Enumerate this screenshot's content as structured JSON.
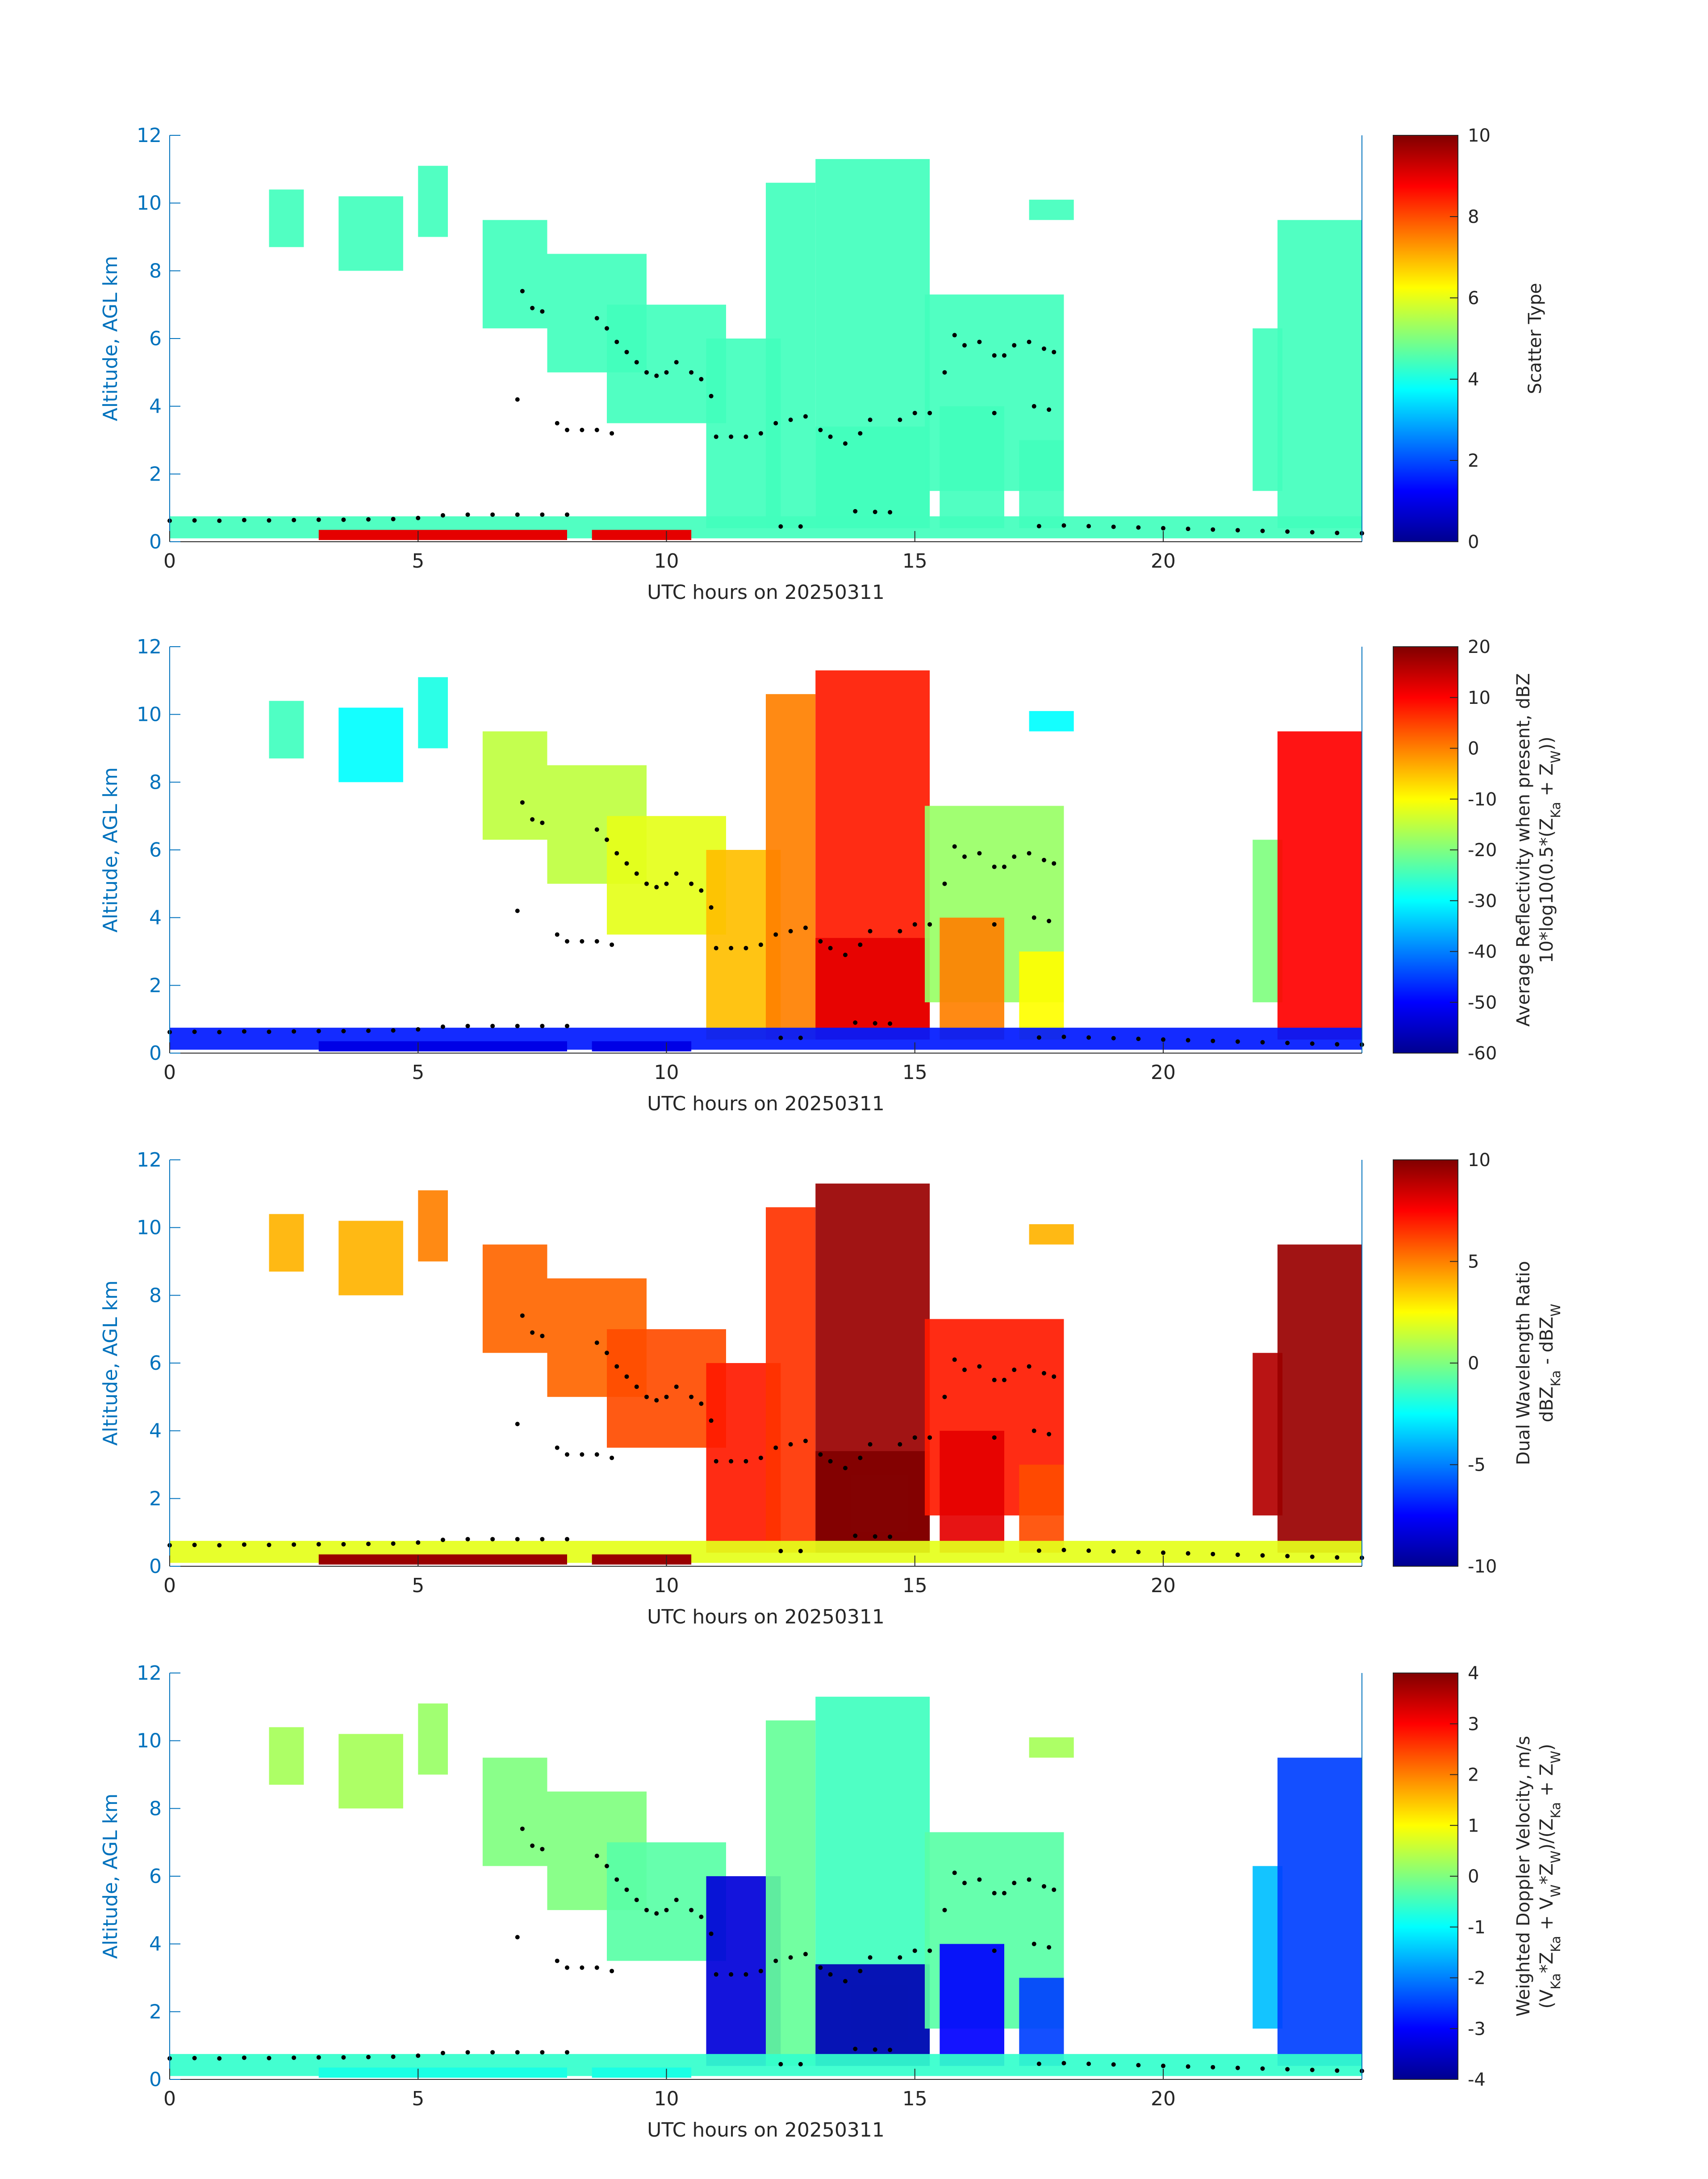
{
  "chart_data": [
    {
      "type": "heatmap",
      "xlabel": "UTC hours on 20250311",
      "ylabel": "Altitude, AGL km",
      "xlim": [
        0,
        24
      ],
      "ylim": [
        0,
        12
      ],
      "xticks": [
        0,
        5,
        10,
        15,
        20
      ],
      "yticks": [
        0,
        2,
        4,
        6,
        8,
        10,
        12
      ],
      "colorbar": {
        "label_lines": [
          "Scatter Type"
        ],
        "range": [
          0,
          10
        ],
        "ticks": [
          0,
          2,
          4,
          6,
          8,
          10
        ],
        "colormap": "jet"
      },
      "dominant_value": 4.4,
      "surface_value": 9.0
    },
    {
      "type": "heatmap",
      "xlabel": "UTC hours on 20250311",
      "ylabel": "Altitude, AGL km",
      "xlim": [
        0,
        24
      ],
      "ylim": [
        0,
        12
      ],
      "xticks": [
        0,
        5,
        10,
        15,
        20
      ],
      "yticks": [
        0,
        2,
        4,
        6,
        8,
        10,
        12
      ],
      "colorbar": {
        "label_lines": [
          "Average Reflectivity when present, dBZ",
          "10*log10(0.5*(Z_Ka + Z_W))"
        ],
        "range": [
          -60,
          20
        ],
        "ticks": [
          -60,
          -50,
          -40,
          -30,
          -20,
          -10,
          0,
          10,
          20
        ],
        "colormap": "jet"
      }
    },
    {
      "type": "heatmap",
      "xlabel": "UTC hours on 20250311",
      "ylabel": "Altitude, AGL km",
      "xlim": [
        0,
        24
      ],
      "ylim": [
        0,
        12
      ],
      "xticks": [
        0,
        5,
        10,
        15,
        20
      ],
      "yticks": [
        0,
        2,
        4,
        6,
        8,
        10,
        12
      ],
      "colorbar": {
        "label_lines": [
          "Dual Wavelength Ratio",
          "dBZ_Ka - dBZ_W"
        ],
        "range": [
          -10,
          10
        ],
        "ticks": [
          -10,
          -5,
          0,
          5,
          10
        ],
        "colormap": "jet"
      }
    },
    {
      "type": "heatmap",
      "xlabel": "UTC hours on 20250311",
      "ylabel": "Altitude, AGL km",
      "xlim": [
        0,
        24
      ],
      "ylim": [
        0,
        12
      ],
      "xticks": [
        0,
        5,
        10,
        15,
        20
      ],
      "yticks": [
        0,
        2,
        4,
        6,
        8,
        10,
        12
      ],
      "colorbar": {
        "label_lines": [
          "Weighted Doppler Velocity, m/s",
          "(V_Ka*Z_Ka + V_W*Z_W)/(Z_Ka + Z_W)"
        ],
        "range": [
          -4,
          4
        ],
        "ticks": [
          -4,
          -3,
          -2,
          -1,
          0,
          1,
          2,
          3,
          4
        ],
        "colormap": "jet"
      }
    }
  ],
  "cloud_echoes": [
    {
      "t0": 2.0,
      "t1": 2.7,
      "base": 8.7,
      "top": 10.4,
      "v": [
        4.4,
        -25,
        4,
        0.3
      ]
    },
    {
      "t0": 3.4,
      "t1": 4.7,
      "base": 8.0,
      "top": 10.2,
      "v": [
        4.4,
        -30,
        4,
        0.3
      ]
    },
    {
      "t0": 5.0,
      "t1": 5.6,
      "base": 9.0,
      "top": 11.1,
      "v": [
        4.4,
        -28,
        5,
        0.2
      ]
    },
    {
      "t0": 6.3,
      "t1": 7.6,
      "base": 6.3,
      "top": 9.5,
      "v": [
        4.4,
        -15,
        5.5,
        0.0
      ]
    },
    {
      "t0": 7.6,
      "t1": 9.6,
      "base": 5.0,
      "top": 8.5,
      "v": [
        4.4,
        -15,
        5.5,
        0.0
      ]
    },
    {
      "t0": 8.8,
      "t1": 11.2,
      "base": 3.5,
      "top": 7.0,
      "v": [
        4.4,
        -12,
        6,
        -0.3
      ]
    },
    {
      "t0": 10.8,
      "t1": 12.3,
      "base": 0.4,
      "top": 6.0,
      "v": [
        4.4,
        -5,
        7,
        -3.3
      ]
    },
    {
      "t0": 12.0,
      "t1": 13.0,
      "base": 0.4,
      "top": 10.6,
      "v": [
        4.4,
        0,
        6.5,
        -0.2
      ]
    },
    {
      "t0": 13.0,
      "t1": 15.3,
      "base": 0.4,
      "top": 11.3,
      "v": [
        4.4,
        8,
        9.5,
        -0.5
      ]
    },
    {
      "t0": 13.0,
      "t1": 15.3,
      "base": 0.4,
      "top": 3.4,
      "v": [
        4.4,
        12,
        10,
        -3.6
      ]
    },
    {
      "t0": 15.2,
      "t1": 18.0,
      "base": 1.5,
      "top": 7.3,
      "v": [
        4.4,
        -18,
        7,
        -0.3
      ]
    },
    {
      "t0": 15.5,
      "t1": 16.8,
      "base": 0.4,
      "top": 4.0,
      "v": [
        4.4,
        0,
        8,
        -3.0
      ]
    },
    {
      "t0": 17.1,
      "t1": 18.0,
      "base": 0.4,
      "top": 3.0,
      "v": [
        4.4,
        -10,
        6,
        -2.5
      ]
    },
    {
      "t0": 17.3,
      "t1": 18.2,
      "base": 9.5,
      "top": 10.1,
      "v": [
        4.4,
        -30,
        4,
        0.3
      ]
    },
    {
      "t0": 21.8,
      "t1": 22.4,
      "base": 1.5,
      "top": 6.3,
      "v": [
        4.4,
        -20,
        9,
        -1.5
      ]
    },
    {
      "t0": 22.3,
      "t1": 24.0,
      "base": 0.4,
      "top": 9.5,
      "v": [
        4.4,
        10,
        9.5,
        -2.5
      ]
    },
    {
      "t0": 0.0,
      "t1": 24.0,
      "base": 0.1,
      "top": 0.75,
      "v": [
        4.4,
        -48,
        2,
        -0.6
      ]
    }
  ],
  "overlay_points": [
    [
      0.0,
      0.62
    ],
    [
      0.5,
      0.63
    ],
    [
      1.0,
      0.62
    ],
    [
      1.5,
      0.64
    ],
    [
      2.0,
      0.63
    ],
    [
      2.5,
      0.64
    ],
    [
      3.0,
      0.65
    ],
    [
      3.5,
      0.65
    ],
    [
      4.0,
      0.66
    ],
    [
      4.5,
      0.67
    ],
    [
      5.0,
      0.7
    ],
    [
      5.5,
      0.78
    ],
    [
      6.0,
      0.8
    ],
    [
      6.5,
      0.8
    ],
    [
      7.0,
      0.8
    ],
    [
      7.5,
      0.8
    ],
    [
      8.0,
      0.8
    ],
    [
      7.0,
      4.2
    ],
    [
      7.1,
      7.4
    ],
    [
      7.3,
      6.9
    ],
    [
      7.5,
      6.8
    ],
    [
      7.8,
      3.5
    ],
    [
      8.0,
      3.3
    ],
    [
      8.3,
      3.3
    ],
    [
      8.6,
      3.3
    ],
    [
      8.9,
      3.2
    ],
    [
      8.6,
      6.6
    ],
    [
      8.8,
      6.3
    ],
    [
      9.0,
      5.9
    ],
    [
      9.2,
      5.6
    ],
    [
      9.4,
      5.3
    ],
    [
      9.6,
      5.0
    ],
    [
      9.8,
      4.9
    ],
    [
      10.0,
      5.0
    ],
    [
      10.2,
      5.3
    ],
    [
      10.5,
      5.0
    ],
    [
      10.7,
      4.8
    ],
    [
      10.9,
      4.3
    ],
    [
      11.0,
      3.1
    ],
    [
      11.3,
      3.1
    ],
    [
      11.6,
      3.1
    ],
    [
      11.9,
      3.2
    ],
    [
      12.2,
      3.5
    ],
    [
      12.5,
      3.6
    ],
    [
      12.8,
      3.7
    ],
    [
      13.1,
      3.3
    ],
    [
      13.3,
      3.1
    ],
    [
      13.6,
      2.9
    ],
    [
      13.9,
      3.2
    ],
    [
      14.1,
      3.6
    ],
    [
      12.3,
      0.45
    ],
    [
      12.7,
      0.45
    ],
    [
      13.8,
      0.9
    ],
    [
      14.2,
      0.88
    ],
    [
      14.5,
      0.87
    ],
    [
      14.7,
      3.6
    ],
    [
      15.0,
      3.8
    ],
    [
      15.3,
      3.8
    ],
    [
      15.6,
      5.0
    ],
    [
      15.8,
      6.1
    ],
    [
      16.0,
      5.8
    ],
    [
      16.3,
      5.9
    ],
    [
      16.6,
      5.5
    ],
    [
      16.8,
      5.5
    ],
    [
      17.0,
      5.8
    ],
    [
      17.3,
      5.9
    ],
    [
      17.6,
      5.7
    ],
    [
      17.8,
      5.6
    ],
    [
      16.6,
      3.8
    ],
    [
      17.4,
      4.0
    ],
    [
      17.7,
      3.9
    ],
    [
      17.5,
      0.46
    ],
    [
      18.0,
      0.48
    ],
    [
      18.5,
      0.46
    ],
    [
      19.0,
      0.44
    ],
    [
      19.5,
      0.42
    ],
    [
      20.0,
      0.4
    ],
    [
      20.5,
      0.38
    ],
    [
      21.0,
      0.36
    ],
    [
      21.5,
      0.34
    ],
    [
      22.0,
      0.32
    ],
    [
      22.5,
      0.3
    ],
    [
      23.0,
      0.28
    ],
    [
      23.5,
      0.26
    ],
    [
      24.0,
      0.25
    ]
  ]
}
